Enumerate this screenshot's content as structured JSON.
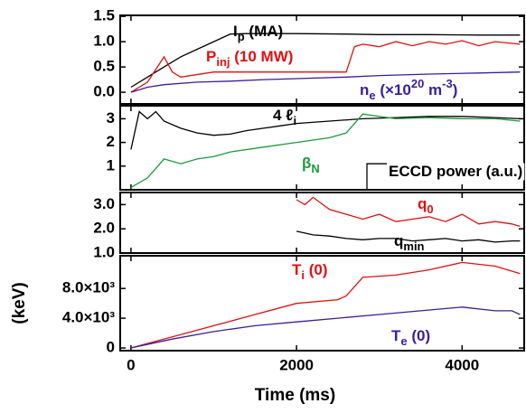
{
  "chart_data": [
    {
      "type": "line",
      "xlim": [
        -130,
        4750
      ],
      "ylim": [
        -0.23,
        1.52
      ],
      "xticks": [
        0,
        2000,
        4000
      ],
      "yticks": [
        {
          "value": 0,
          "label": "0.0"
        },
        0.5,
        {
          "value": 1,
          "label": "1.0"
        },
        1.5
      ],
      "series": [
        {
          "color": "#000000",
          "x": [
            0,
            200,
            400,
            600,
            800,
            1000,
            1200,
            1400,
            2000,
            2600,
            3000,
            3600,
            4200,
            4700
          ],
          "values": [
            0.1,
            0.3,
            0.5,
            0.7,
            0.85,
            1.0,
            1.15,
            1.16,
            1.16,
            1.15,
            1.14,
            1.14,
            1.13,
            1.13
          ]
        },
        {
          "color": "#e01010",
          "x": [
            0,
            200,
            300,
            400,
            500,
            600,
            1000,
            1400,
            2000,
            2600,
            2700,
            2800,
            3000,
            3200,
            3400,
            3600,
            3800,
            4000,
            4200,
            4400,
            4700
          ],
          "values": [
            0,
            0.2,
            0.45,
            0.7,
            0.4,
            0.3,
            0.4,
            0.4,
            0.4,
            0.4,
            0.9,
            0.95,
            0.9,
            1.0,
            0.92,
            1.0,
            0.95,
            1.02,
            0.92,
            1.0,
            0.95
          ]
        },
        {
          "color": "#3a1e9a",
          "x": [
            0,
            200,
            400,
            800,
            1200,
            1600,
            2000,
            2600,
            3000,
            3600,
            4200,
            4700
          ],
          "values": [
            0.0,
            0.1,
            0.15,
            0.2,
            0.22,
            0.25,
            0.27,
            0.3,
            0.33,
            0.36,
            0.38,
            0.4
          ]
        }
      ],
      "annotations": [
        {
          "color": "#000000",
          "parts": [
            {
              "t": "I"
            },
            {
              "t": "p",
              "shift": "sub"
            },
            {
              "t": " (MA)"
            }
          ]
        },
        {
          "color": "#e01010",
          "parts": [
            {
              "t": "P"
            },
            {
              "t": "inj",
              "shift": "sub"
            },
            {
              "t": " (10 MW)"
            }
          ]
        },
        {
          "color": "#3a1e9a",
          "parts": [
            {
              "t": "n"
            },
            {
              "t": "e",
              "shift": "sub"
            },
            {
              "t": " (×10"
            },
            {
              "t": "20",
              "shift": "sup"
            },
            {
              "t": " m"
            },
            {
              "t": "-3",
              "shift": "sup"
            },
            {
              "t": ")"
            }
          ]
        }
      ]
    },
    {
      "type": "line",
      "xlim": [
        -130,
        4750
      ],
      "ylim": [
        0,
        3.55
      ],
      "xticks": [
        0,
        2000,
        4000
      ],
      "yticks": [
        1,
        2,
        3
      ],
      "series": [
        {
          "color": "#000000",
          "x": [
            0,
            100,
            200,
            300,
            400,
            600,
            800,
            1000,
            1200,
            1400,
            1600,
            1800,
            2000,
            2400,
            2800,
            3200,
            3600,
            4000,
            4400,
            4700
          ],
          "values": [
            1.7,
            3.3,
            3.0,
            3.3,
            2.9,
            2.6,
            2.4,
            2.3,
            2.35,
            2.5,
            2.6,
            2.7,
            2.8,
            2.9,
            3.0,
            3.05,
            3.1,
            3.1,
            3.05,
            3.0
          ]
        },
        {
          "color": "#1a9a3a",
          "x": [
            0,
            200,
            400,
            600,
            800,
            1000,
            1200,
            1600,
            2000,
            2400,
            2600,
            2800,
            3200,
            3600,
            4000,
            4400,
            4700
          ],
          "values": [
            0.1,
            0.5,
            1.3,
            1.1,
            1.3,
            1.4,
            1.6,
            1.8,
            2.0,
            2.2,
            2.4,
            3.2,
            3.0,
            3.05,
            3.0,
            3.0,
            2.9
          ]
        },
        {
          "color": "#000000",
          "x": [
            2850,
            2850,
            4750,
            4750
          ],
          "values": [
            0,
            1.1,
            1.1,
            0
          ]
        }
      ],
      "annotations": [
        {
          "color": "#000000",
          "parts": [
            {
              "t": "4 ℓ"
            },
            {
              "t": "i",
              "shift": "sub"
            }
          ]
        },
        {
          "color": "#1a9a3a",
          "parts": [
            {
              "t": "β"
            },
            {
              "t": "N",
              "shift": "sub"
            }
          ]
        },
        {
          "color": "#000000",
          "parts": [
            {
              "t": "ECCD power  (a.u.)"
            }
          ]
        }
      ]
    },
    {
      "type": "line",
      "xlim": [
        -130,
        4750
      ],
      "ylim": [
        1.0,
        3.5
      ],
      "xticks": [
        0,
        2000,
        4000
      ],
      "yticks": [
        {
          "value": 1,
          "label": "1.0"
        },
        {
          "value": 2,
          "label": "2.0"
        },
        {
          "value": 3,
          "label": "3.0"
        }
      ],
      "series": [
        {
          "color": "#e01010",
          "x": [
            2000,
            2100,
            2200,
            2400,
            2600,
            2800,
            3000,
            3200,
            3400,
            3600,
            3800,
            4000,
            4200,
            4400,
            4600,
            4700
          ],
          "values": [
            3.2,
            3.0,
            3.3,
            2.8,
            2.6,
            2.4,
            2.6,
            2.3,
            2.4,
            2.5,
            2.3,
            2.6,
            2.2,
            2.3,
            2.2,
            2.1
          ]
        },
        {
          "color": "#000000",
          "x": [
            2000,
            2200,
            2400,
            2600,
            2800,
            3000,
            3200,
            3400,
            3600,
            3800,
            4000,
            4200,
            4400,
            4600,
            4700
          ],
          "values": [
            1.9,
            1.75,
            1.7,
            1.6,
            1.55,
            1.6,
            1.6,
            1.5,
            1.55,
            1.6,
            1.5,
            1.55,
            1.45,
            1.5,
            1.5
          ]
        }
      ],
      "annotations": [
        {
          "color": "#e01010",
          "parts": [
            {
              "t": "q"
            },
            {
              "t": "0",
              "shift": "sub"
            }
          ]
        },
        {
          "color": "#000000",
          "parts": [
            {
              "t": "q"
            },
            {
              "t": "min",
              "shift": "sub"
            }
          ]
        }
      ]
    },
    {
      "type": "line",
      "xlim": [
        -130,
        4750
      ],
      "ylim": [
        -360,
        12400
      ],
      "xticks": [
        0,
        2000,
        4000
      ],
      "yticks": [
        0,
        {
          "value": 4000,
          "label": "4.0×10³"
        },
        {
          "value": 8000,
          "label": "8.0×10³"
        }
      ],
      "xlabel": "Time (ms)",
      "ylabel": "(keV)",
      "series": [
        {
          "color": "#e01010",
          "x": [
            0,
            500,
            1000,
            1500,
            2000,
            2500,
            2600,
            2800,
            3200,
            3600,
            4000,
            4400,
            4700
          ],
          "values": [
            0,
            1500,
            3000,
            4500,
            6000,
            6500,
            7000,
            9500,
            9800,
            10500,
            11500,
            11000,
            10000
          ]
        },
        {
          "color": "#3a1e9a",
          "x": [
            0,
            500,
            1000,
            1500,
            2000,
            2500,
            3000,
            3500,
            4000,
            4400,
            4600,
            4700
          ],
          "values": [
            0,
            1200,
            2200,
            3000,
            3500,
            4000,
            4500,
            5000,
            5500,
            5000,
            5000,
            4500
          ]
        }
      ],
      "annotations": [
        {
          "color": "#e01010",
          "parts": [
            {
              "t": "T"
            },
            {
              "t": "i",
              "shift": "sub"
            },
            {
              "t": " (0)"
            }
          ]
        },
        {
          "color": "#3a1e9a",
          "parts": [
            {
              "t": "T"
            },
            {
              "t": "e",
              "shift": "sub"
            },
            {
              "t": "  (0)"
            }
          ]
        }
      ]
    }
  ]
}
